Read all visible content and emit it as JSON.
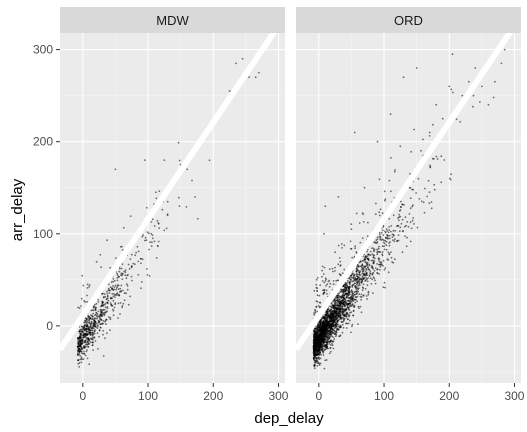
{
  "chart_data": {
    "type": "scatter",
    "xlabel": "dep_delay",
    "ylabel": "arr_delay",
    "xlim": [
      -35,
      310
    ],
    "ylim": [
      -62,
      318
    ],
    "xticks": [
      0,
      100,
      200,
      300
    ],
    "yticks": [
      0,
      100,
      200,
      300
    ],
    "grid": true,
    "facets": [
      {
        "name": "MDW",
        "fit_line": {
          "slope": 1.05,
          "intercept": 11
        },
        "points_sampled": [
          [
            -5,
            -22
          ],
          [
            0,
            -30
          ],
          [
            3,
            -10
          ],
          [
            -2,
            5
          ],
          [
            8,
            -15
          ],
          [
            10,
            10
          ],
          [
            15,
            -5
          ],
          [
            20,
            20
          ],
          [
            25,
            5
          ],
          [
            30,
            35
          ],
          [
            35,
            15
          ],
          [
            40,
            45
          ],
          [
            45,
            30
          ],
          [
            50,
            60
          ],
          [
            50,
            170
          ],
          [
            55,
            40
          ],
          [
            60,
            75
          ],
          [
            65,
            55
          ],
          [
            70,
            85
          ],
          [
            80,
            95
          ],
          [
            85,
            70
          ],
          [
            90,
            110
          ],
          [
            95,
            180
          ],
          [
            100,
            120
          ],
          [
            105,
            100
          ],
          [
            110,
            130
          ],
          [
            120,
            140
          ],
          [
            125,
            180
          ],
          [
            130,
            120
          ],
          [
            140,
            160
          ],
          [
            150,
            175
          ],
          [
            160,
            170
          ],
          [
            165,
            185
          ],
          [
            175,
            195
          ],
          [
            180,
            200
          ],
          [
            190,
            215
          ],
          [
            200,
            220
          ],
          [
            215,
            240
          ],
          [
            225,
            255
          ],
          [
            235,
            285
          ],
          [
            245,
            290
          ],
          [
            255,
            270
          ],
          [
            265,
            270
          ],
          [
            270,
            275
          ]
        ]
      },
      {
        "name": "ORD",
        "fit_line": {
          "slope": 1.05,
          "intercept": 11
        },
        "points_sampled": [
          [
            -5,
            -40
          ],
          [
            0,
            -25
          ],
          [
            2,
            20
          ],
          [
            5,
            60
          ],
          [
            8,
            100
          ],
          [
            10,
            130
          ],
          [
            20,
            30
          ],
          [
            25,
            80
          ],
          [
            30,
            140
          ],
          [
            40,
            50
          ],
          [
            50,
            105
          ],
          [
            55,
            210
          ],
          [
            60,
            75
          ],
          [
            70,
            150
          ],
          [
            80,
            95
          ],
          [
            90,
            200
          ],
          [
            100,
            120
          ],
          [
            110,
            230
          ],
          [
            120,
            140
          ],
          [
            125,
            195
          ],
          [
            130,
            270
          ],
          [
            140,
            165
          ],
          [
            150,
            280
          ],
          [
            160,
            185
          ],
          [
            170,
            210
          ],
          [
            180,
            240
          ],
          [
            190,
            225
          ],
          [
            200,
            260
          ],
          [
            205,
            295
          ],
          [
            220,
            250
          ],
          [
            230,
            265
          ],
          [
            240,
            280
          ],
          [
            250,
            260
          ],
          [
            260,
            240
          ],
          [
            270,
            265
          ],
          [
            280,
            285
          ],
          [
            285,
            300
          ]
        ]
      }
    ]
  }
}
